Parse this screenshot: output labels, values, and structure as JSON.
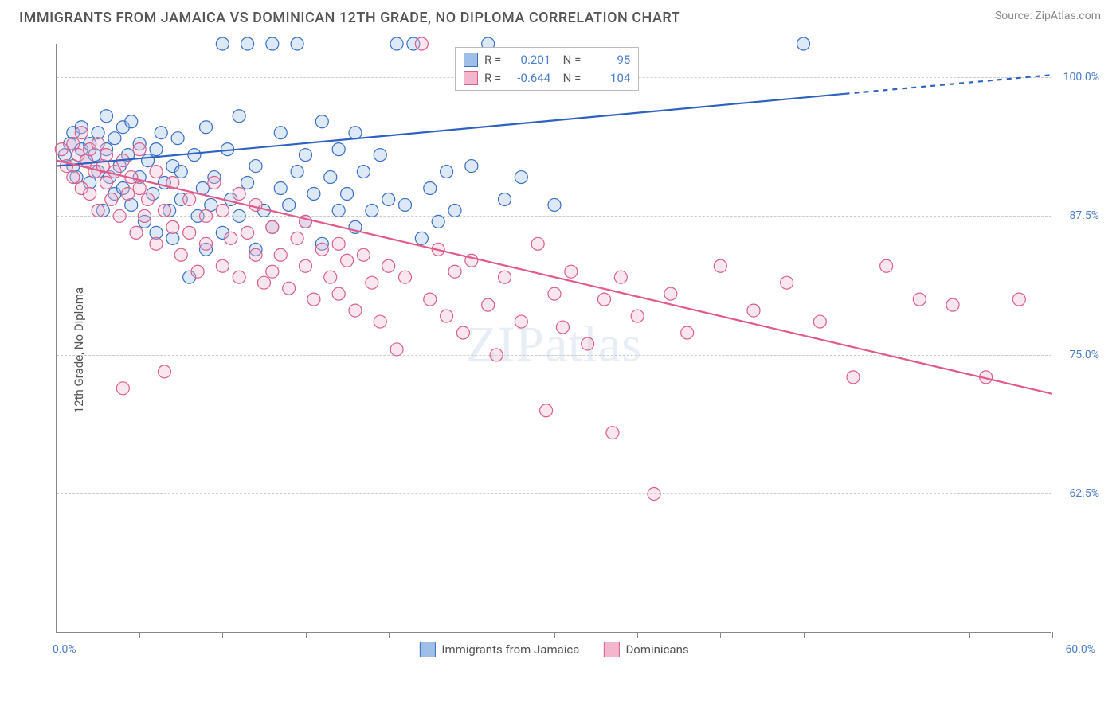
{
  "title": "IMMIGRANTS FROM JAMAICA VS DOMINICAN 12TH GRADE, NO DIPLOMA CORRELATION CHART",
  "source": "Source: ZipAtlas.com",
  "watermark": "ZIPatlas",
  "chart": {
    "type": "scatter",
    "background_color": "#ffffff",
    "grid_color": "#cccccc",
    "axis_color": "#888888",
    "tick_label_color": "#4a7ec9",
    "axis_title_color": "#555555",
    "title_fontsize": 18,
    "label_fontsize": 15,
    "tick_fontsize": 14,
    "ylabel": "12th Grade, No Diploma",
    "x_min_label": "0.0%",
    "x_max_label": "60.0%",
    "xlim": [
      0,
      60
    ],
    "ylim": [
      50,
      103
    ],
    "xticks_pct": [
      0,
      5,
      10,
      15,
      20,
      25,
      30,
      35,
      40,
      45,
      50,
      55,
      60
    ],
    "yticks": [
      {
        "value": 100.0,
        "label": "100.0%"
      },
      {
        "value": 87.5,
        "label": "87.5%"
      },
      {
        "value": 75.0,
        "label": "75.0%"
      },
      {
        "value": 62.5,
        "label": "62.5%"
      }
    ],
    "marker_radius": 8,
    "marker_stroke_width": 1.2,
    "marker_fill_opacity": 0.35,
    "trend_line_width": 2.2,
    "series": [
      {
        "name": "Immigrants from Jamaica",
        "color_stroke": "#3b6fc4",
        "color_fill": "#9fbfe8",
        "trend_color": "#2e62c2",
        "R": "0.201",
        "N": "95",
        "trend": {
          "x1": 0,
          "y1": 92.0,
          "x2": 47.5,
          "y2": 98.5,
          "x2_ext": 60,
          "y2_ext": 100.2
        },
        "points": [
          [
            0.5,
            93
          ],
          [
            0.8,
            94
          ],
          [
            1,
            92
          ],
          [
            1,
            95
          ],
          [
            1.2,
            91
          ],
          [
            1.5,
            93.5
          ],
          [
            1.5,
            95.5
          ],
          [
            1.8,
            92.5
          ],
          [
            2,
            94
          ],
          [
            2,
            90.5
          ],
          [
            2.3,
            93
          ],
          [
            2.5,
            95
          ],
          [
            2.5,
            91.5
          ],
          [
            2.8,
            88
          ],
          [
            3,
            93.5
          ],
          [
            3,
            96.5
          ],
          [
            3.2,
            91
          ],
          [
            3.5,
            89.5
          ],
          [
            3.5,
            94.5
          ],
          [
            3.8,
            92
          ],
          [
            4,
            90
          ],
          [
            4,
            95.5
          ],
          [
            4.3,
            93
          ],
          [
            4.5,
            88.5
          ],
          [
            4.5,
            96
          ],
          [
            5,
            91
          ],
          [
            5,
            94
          ],
          [
            5.3,
            87
          ],
          [
            5.5,
            92.5
          ],
          [
            5.8,
            89.5
          ],
          [
            6,
            93.5
          ],
          [
            6,
            86
          ],
          [
            6.3,
            95
          ],
          [
            6.5,
            90.5
          ],
          [
            6.8,
            88
          ],
          [
            7,
            92
          ],
          [
            7,
            85.5
          ],
          [
            7.3,
            94.5
          ],
          [
            7.5,
            89
          ],
          [
            7.5,
            91.5
          ],
          [
            8,
            82
          ],
          [
            8.3,
            93
          ],
          [
            8.5,
            87.5
          ],
          [
            8.8,
            90
          ],
          [
            9,
            84.5
          ],
          [
            9,
            95.5
          ],
          [
            9.3,
            88.5
          ],
          [
            9.5,
            91
          ],
          [
            10,
            86
          ],
          [
            10,
            103
          ],
          [
            10.3,
            93.5
          ],
          [
            10.5,
            89
          ],
          [
            11,
            96.5
          ],
          [
            11,
            87.5
          ],
          [
            11.5,
            103
          ],
          [
            11.5,
            90.5
          ],
          [
            12,
            84.5
          ],
          [
            12,
            92
          ],
          [
            12.5,
            88
          ],
          [
            13,
            103
          ],
          [
            13,
            86.5
          ],
          [
            13.5,
            90
          ],
          [
            13.5,
            95
          ],
          [
            14,
            88.5
          ],
          [
            14.5,
            103
          ],
          [
            14.5,
            91.5
          ],
          [
            15,
            87
          ],
          [
            15,
            93
          ],
          [
            15.5,
            89.5
          ],
          [
            16,
            96
          ],
          [
            16,
            85
          ],
          [
            16.5,
            91
          ],
          [
            17,
            88
          ],
          [
            17,
            93.5
          ],
          [
            17.5,
            89.5
          ],
          [
            18,
            95
          ],
          [
            18,
            86.5
          ],
          [
            18.5,
            91.5
          ],
          [
            19,
            88
          ],
          [
            19.5,
            93
          ],
          [
            20,
            89
          ],
          [
            20.5,
            103
          ],
          [
            21,
            88.5
          ],
          [
            21.5,
            103
          ],
          [
            22,
            85.5
          ],
          [
            22.5,
            90
          ],
          [
            23,
            87
          ],
          [
            23.5,
            91.5
          ],
          [
            24,
            88
          ],
          [
            25,
            92
          ],
          [
            26,
            103
          ],
          [
            27,
            89
          ],
          [
            28,
            91
          ],
          [
            30,
            88.5
          ],
          [
            45,
            103
          ]
        ]
      },
      {
        "name": "Dominicans",
        "color_stroke": "#d95f8c",
        "color_fill": "#f2b7cd",
        "trend_color": "#e15a89",
        "R": "-0.644",
        "N": "104",
        "trend": {
          "x1": 0,
          "y1": 92.5,
          "x2": 60,
          "y2": 71.5,
          "x2_ext": 60,
          "y2_ext": 71.5
        },
        "points": [
          [
            0.3,
            93.5
          ],
          [
            0.6,
            92
          ],
          [
            1,
            94
          ],
          [
            1,
            91
          ],
          [
            1.3,
            93
          ],
          [
            1.5,
            95
          ],
          [
            1.5,
            90
          ],
          [
            1.8,
            92.5
          ],
          [
            2,
            93.5
          ],
          [
            2,
            89.5
          ],
          [
            2.3,
            91.5
          ],
          [
            2.5,
            94
          ],
          [
            2.5,
            88
          ],
          [
            2.8,
            92
          ],
          [
            3,
            90.5
          ],
          [
            3,
            93
          ],
          [
            3.3,
            89
          ],
          [
            3.5,
            91.5
          ],
          [
            3.8,
            87.5
          ],
          [
            4,
            92.5
          ],
          [
            4,
            72
          ],
          [
            4.3,
            89.5
          ],
          [
            4.5,
            91
          ],
          [
            4.8,
            86
          ],
          [
            5,
            90
          ],
          [
            5,
            93.5
          ],
          [
            5.3,
            87.5
          ],
          [
            5.5,
            89
          ],
          [
            6,
            85
          ],
          [
            6,
            91.5
          ],
          [
            6.5,
            88
          ],
          [
            6.5,
            73.5
          ],
          [
            7,
            86.5
          ],
          [
            7,
            90.5
          ],
          [
            7.5,
            84
          ],
          [
            8,
            89
          ],
          [
            8,
            86
          ],
          [
            8.5,
            82.5
          ],
          [
            9,
            87.5
          ],
          [
            9,
            85
          ],
          [
            9.5,
            90.5
          ],
          [
            10,
            83
          ],
          [
            10,
            88
          ],
          [
            10.5,
            85.5
          ],
          [
            11,
            89.5
          ],
          [
            11,
            82
          ],
          [
            11.5,
            86
          ],
          [
            12,
            84
          ],
          [
            12,
            88.5
          ],
          [
            12.5,
            81.5
          ],
          [
            13,
            82.5
          ],
          [
            13,
            86.5
          ],
          [
            13.5,
            84
          ],
          [
            14,
            81
          ],
          [
            14.5,
            85.5
          ],
          [
            15,
            83
          ],
          [
            15,
            87
          ],
          [
            15.5,
            80
          ],
          [
            16,
            84.5
          ],
          [
            16.5,
            82
          ],
          [
            17,
            85
          ],
          [
            17,
            80.5
          ],
          [
            17.5,
            83.5
          ],
          [
            18,
            79
          ],
          [
            18.5,
            84
          ],
          [
            19,
            81.5
          ],
          [
            19.5,
            78
          ],
          [
            20,
            83
          ],
          [
            20.5,
            75.5
          ],
          [
            21,
            82
          ],
          [
            22,
            103
          ],
          [
            22.5,
            80
          ],
          [
            23,
            84.5
          ],
          [
            23.5,
            78.5
          ],
          [
            24,
            82.5
          ],
          [
            24.5,
            77
          ],
          [
            25,
            83.5
          ],
          [
            26,
            79.5
          ],
          [
            26.5,
            75
          ],
          [
            27,
            82
          ],
          [
            28,
            78
          ],
          [
            29,
            85
          ],
          [
            29.5,
            70
          ],
          [
            30,
            80.5
          ],
          [
            30.5,
            77.5
          ],
          [
            31,
            82.5
          ],
          [
            32,
            76
          ],
          [
            33,
            80
          ],
          [
            33.5,
            68
          ],
          [
            34,
            82
          ],
          [
            35,
            78.5
          ],
          [
            36,
            62.5
          ],
          [
            37,
            80.5
          ],
          [
            38,
            77
          ],
          [
            40,
            83
          ],
          [
            42,
            79
          ],
          [
            44,
            81.5
          ],
          [
            46,
            78
          ],
          [
            48,
            73
          ],
          [
            50,
            83
          ],
          [
            52,
            80
          ],
          [
            54,
            79.5
          ],
          [
            56,
            73
          ],
          [
            58,
            80
          ]
        ]
      }
    ]
  }
}
